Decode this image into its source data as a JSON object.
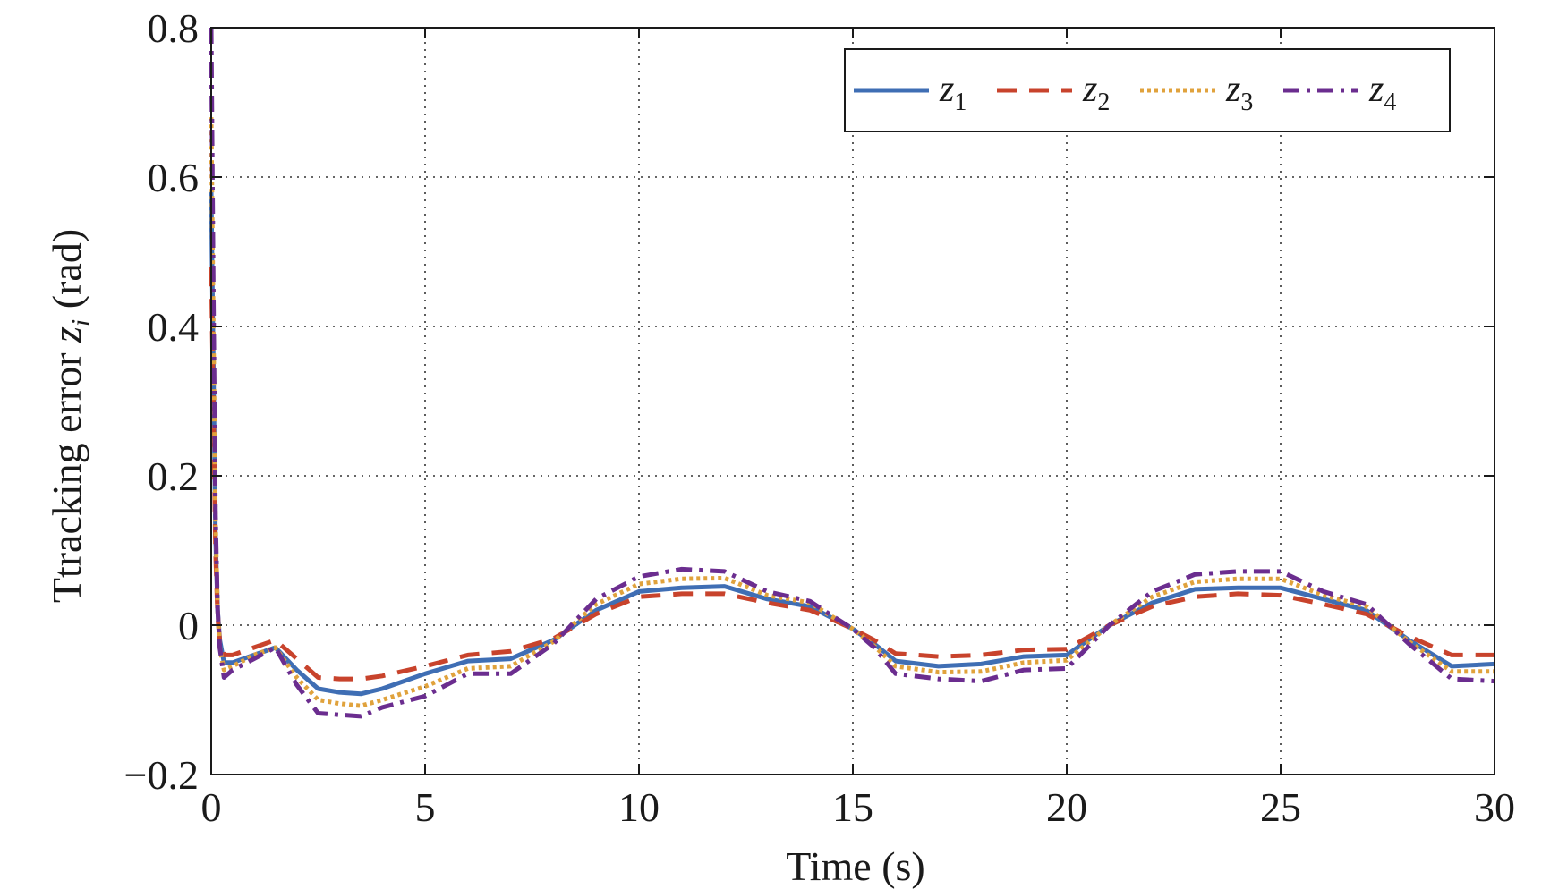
{
  "chart_data": {
    "type": "line",
    "title": "",
    "xlabel": "Time (s)",
    "ylabel_prefix": "Ttracking error ",
    "ylabel_var": "z",
    "ylabel_sub": "i",
    "ylabel_suffix": " (rad)",
    "xlim": [
      0,
      30
    ],
    "ylim": [
      -0.2,
      0.8
    ],
    "xticks": [
      0,
      5,
      10,
      15,
      20,
      25,
      30
    ],
    "xtick_labels": [
      "0",
      "5",
      "10",
      "15",
      "20",
      "25",
      "30"
    ],
    "yticks": [
      -0.2,
      0,
      0.2,
      0.4,
      0.6,
      0.8
    ],
    "ytick_labels": [
      "−0.2",
      "0",
      "0.2",
      "0.4",
      "0.6",
      "0.8"
    ],
    "grid": true,
    "legend_position": "top-right",
    "series": [
      {
        "name": "z",
        "sub": "1",
        "color": "#3f6eb4",
        "style": "solid",
        "x": [
          0,
          0.05,
          0.1,
          0.15,
          0.2,
          0.3,
          0.5,
          1,
          1.5,
          2,
          2.5,
          3,
          3.5,
          4,
          5,
          6,
          7,
          8,
          9,
          10,
          11,
          12,
          13,
          14,
          14.5,
          15,
          15.5,
          16,
          17,
          18,
          19,
          20,
          21,
          22,
          23,
          24,
          25,
          26,
          27,
          28,
          29,
          30
        ],
        "y": [
          0.58,
          0.35,
          0.12,
          0.02,
          -0.02,
          -0.05,
          -0.05,
          -0.04,
          -0.03,
          -0.06,
          -0.085,
          -0.09,
          -0.092,
          -0.085,
          -0.065,
          -0.048,
          -0.045,
          -0.02,
          0.02,
          0.045,
          0.05,
          0.052,
          0.035,
          0.025,
          0.01,
          -0.005,
          -0.025,
          -0.048,
          -0.055,
          -0.052,
          -0.042,
          -0.04,
          0.0,
          0.03,
          0.048,
          0.05,
          0.05,
          0.035,
          0.02,
          -0.02,
          -0.055,
          -0.052
        ]
      },
      {
        "name": "z",
        "sub": "2",
        "color": "#c8432c",
        "style": "dashed",
        "x": [
          0,
          0.05,
          0.1,
          0.15,
          0.2,
          0.3,
          0.5,
          1,
          1.5,
          2,
          2.5,
          3,
          3.5,
          4,
          5,
          6,
          7,
          8,
          9,
          10,
          11,
          12,
          13,
          14,
          14.5,
          15,
          15.5,
          16,
          17,
          18,
          19,
          20,
          21,
          22,
          23,
          24,
          25,
          26,
          27,
          28,
          29,
          30
        ],
        "y": [
          0.48,
          0.3,
          0.1,
          0.01,
          -0.02,
          -0.04,
          -0.04,
          -0.03,
          -0.02,
          -0.045,
          -0.07,
          -0.072,
          -0.072,
          -0.068,
          -0.055,
          -0.04,
          -0.035,
          -0.018,
          0.015,
          0.038,
          0.042,
          0.042,
          0.03,
          0.02,
          0.008,
          -0.005,
          -0.02,
          -0.038,
          -0.042,
          -0.04,
          -0.033,
          -0.032,
          0.0,
          0.025,
          0.038,
          0.042,
          0.04,
          0.028,
          0.015,
          -0.015,
          -0.04,
          -0.04
        ]
      },
      {
        "name": "z",
        "sub": "3",
        "color": "#e0a23c",
        "style": "dotted",
        "x": [
          0,
          0.05,
          0.1,
          0.15,
          0.2,
          0.3,
          0.5,
          1,
          1.5,
          2,
          2.5,
          3,
          3.5,
          4,
          5,
          6,
          7,
          8,
          9,
          10,
          11,
          12,
          13,
          14,
          14.5,
          15,
          15.5,
          16,
          17,
          18,
          19,
          20,
          21,
          22,
          23,
          24,
          25,
          26,
          27,
          28,
          29,
          30
        ],
        "y": [
          0.68,
          0.4,
          0.14,
          0.02,
          -0.03,
          -0.06,
          -0.055,
          -0.04,
          -0.03,
          -0.07,
          -0.1,
          -0.105,
          -0.108,
          -0.1,
          -0.082,
          -0.058,
          -0.055,
          -0.022,
          0.028,
          0.055,
          0.062,
          0.063,
          0.04,
          0.03,
          0.012,
          -0.005,
          -0.028,
          -0.055,
          -0.063,
          -0.062,
          -0.05,
          -0.047,
          0.0,
          0.038,
          0.058,
          0.062,
          0.062,
          0.04,
          0.025,
          -0.022,
          -0.062,
          -0.062
        ]
      },
      {
        "name": "z",
        "sub": "4",
        "color": "#6b2d8f",
        "style": "dashdot",
        "x": [
          0,
          0.05,
          0.1,
          0.15,
          0.2,
          0.3,
          0.5,
          1,
          1.5,
          2,
          2.5,
          3,
          3.5,
          4,
          5,
          6,
          7,
          8,
          9,
          10,
          11,
          12,
          13,
          14,
          14.5,
          15,
          15.5,
          16,
          17,
          18,
          19,
          20,
          21,
          22,
          23,
          24,
          25,
          26,
          27,
          28,
          29,
          30
        ],
        "y": [
          0.8,
          0.45,
          0.15,
          0.02,
          -0.03,
          -0.07,
          -0.06,
          -0.045,
          -0.03,
          -0.08,
          -0.118,
          -0.12,
          -0.122,
          -0.11,
          -0.095,
          -0.065,
          -0.065,
          -0.025,
          0.035,
          0.065,
          0.075,
          0.072,
          0.045,
          0.032,
          0.013,
          -0.005,
          -0.03,
          -0.065,
          -0.072,
          -0.075,
          -0.06,
          -0.058,
          0.0,
          0.045,
          0.068,
          0.072,
          0.072,
          0.045,
          0.028,
          -0.025,
          -0.072,
          -0.075
        ]
      }
    ]
  }
}
